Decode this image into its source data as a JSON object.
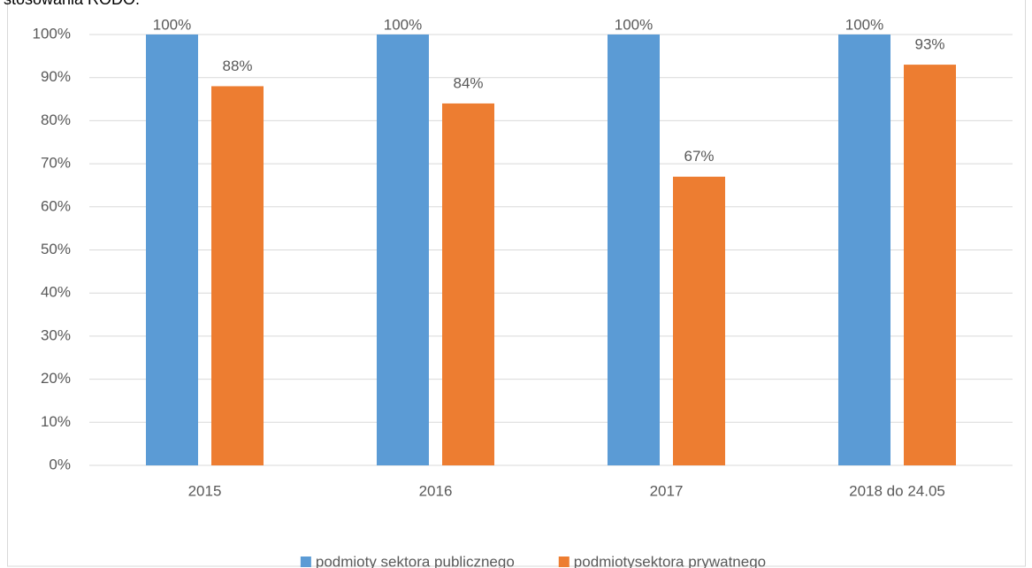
{
  "chart_data": {
    "type": "bar",
    "title": "stosowania RODO.",
    "categories": [
      "2015",
      "2016",
      "2017",
      "2018 do 24.05"
    ],
    "series": [
      {
        "name": "podmioty sektora publicznego",
        "color": "#5b9bd5",
        "values": [
          100,
          100,
          100,
          100
        ],
        "value_labels": [
          "100%",
          "100%",
          "100%",
          "100%"
        ]
      },
      {
        "name": "podmiotysektora prywatnego",
        "color": "#ed7d31",
        "values": [
          88,
          84,
          67,
          93
        ],
        "value_labels": [
          "88%",
          "84%",
          "67%",
          "93%"
        ]
      }
    ],
    "ylim": [
      0,
      100
    ],
    "yticks": [
      {
        "value": 0,
        "label": "0%"
      },
      {
        "value": 10,
        "label": "10%"
      },
      {
        "value": 20,
        "label": "20%"
      },
      {
        "value": 30,
        "label": "30%"
      },
      {
        "value": 40,
        "label": "40%"
      },
      {
        "value": 50,
        "label": "50%"
      },
      {
        "value": 60,
        "label": "60%"
      },
      {
        "value": 70,
        "label": "70%"
      },
      {
        "value": 80,
        "label": "80%"
      },
      {
        "value": 90,
        "label": "90%"
      },
      {
        "value": 100,
        "label": "100%"
      }
    ],
    "grid": true,
    "legend": "bottom"
  }
}
